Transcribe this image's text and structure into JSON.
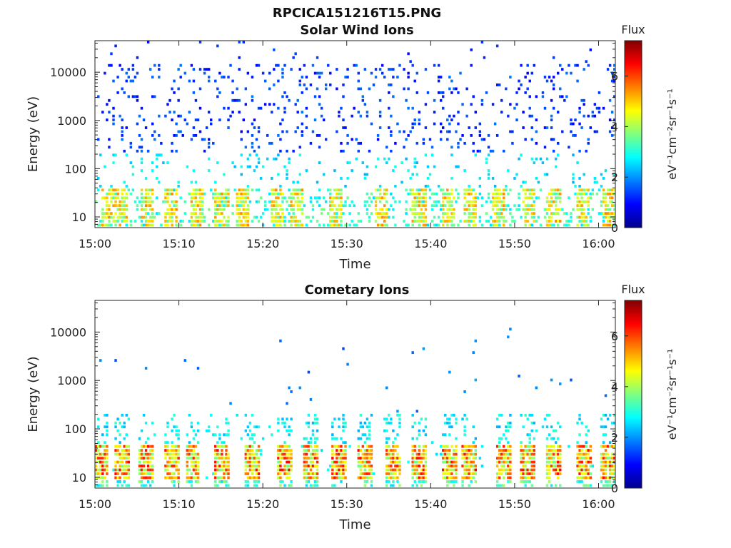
{
  "figure": {
    "title": "RPCICA151216T15.PNG"
  },
  "chart_data": [
    {
      "type": "heatmap",
      "title": "Solar Wind Ions",
      "xlabel": "Time",
      "ylabel": "Energy (eV)",
      "x_ticks": [
        "15:00",
        "15:10",
        "15:20",
        "15:30",
        "15:40",
        "15:50",
        "16:00"
      ],
      "x_range": [
        "15:00",
        "16:02"
      ],
      "y_scale": "log",
      "y_ticks": [
        "10",
        "100",
        "1000",
        "10000"
      ],
      "y_range": [
        6,
        45000
      ],
      "colorbar": {
        "title": "Flux",
        "label": "eV⁻¹cm⁻²sr⁻¹s⁻¹",
        "ticks": [
          "0",
          "2",
          "4",
          "6"
        ],
        "range": [
          0,
          7.4
        ],
        "colormap": "jet"
      },
      "description_levels": {
        "low_energy_bands_eV": [
          12,
          35
        ],
        "low_energy_flux": 4.5,
        "high_energy_sparse_flux": 1.2,
        "periodic_bursts_min": [
          1.5,
          3,
          6,
          9,
          12,
          15,
          17.5,
          21.5,
          24,
          28.5,
          34,
          38.5,
          42,
          44.5,
          48,
          51.5,
          54.5,
          58,
          61
        ]
      }
    },
    {
      "type": "heatmap",
      "title": "Cometary Ions",
      "xlabel": "Time",
      "ylabel": "Energy (eV)",
      "x_ticks": [
        "15:00",
        "15:10",
        "15:20",
        "15:30",
        "15:40",
        "15:50",
        "16:00"
      ],
      "x_range": [
        "15:00",
        "16:02"
      ],
      "y_scale": "log",
      "y_ticks": [
        "10",
        "100",
        "1000",
        "10000"
      ],
      "y_range": [
        6,
        45000
      ],
      "colorbar": {
        "title": "Flux",
        "label": "eV⁻¹cm⁻²sr⁻¹s⁻¹",
        "ticks": [
          "0",
          "2",
          "4",
          "6"
        ],
        "range": [
          0,
          7.4
        ],
        "colormap": "jet"
      },
      "description_levels": {
        "burst_minutes": [
          0.5,
          3,
          6,
          9,
          11.5,
          15,
          18.5,
          22.5,
          25.5,
          29,
          32,
          35.5,
          38.5,
          42,
          44.5,
          48.5,
          51.5,
          54.5,
          58,
          61
        ],
        "burst_peak_flux": 6.5,
        "burst_energy_eV": [
          10,
          45
        ]
      }
    }
  ]
}
